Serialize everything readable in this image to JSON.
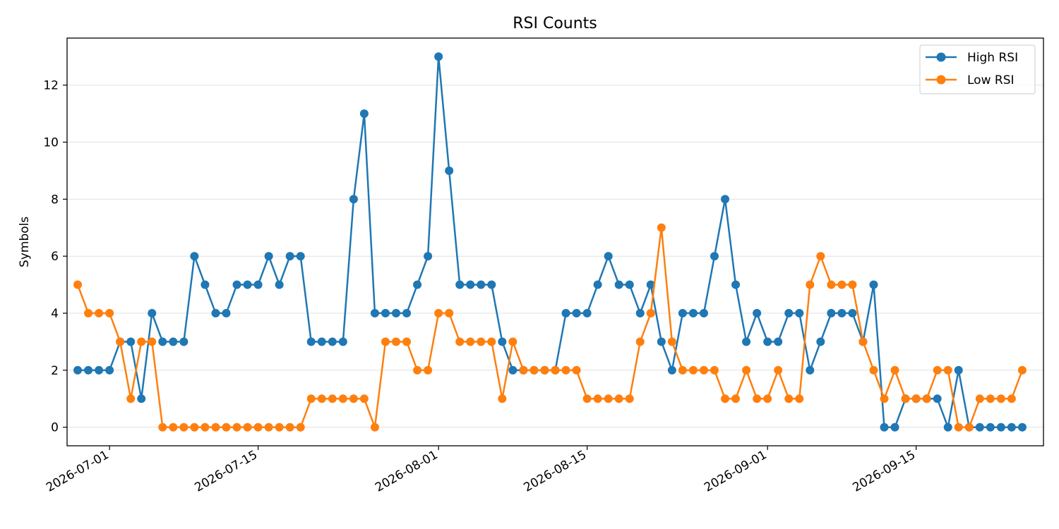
{
  "chart_data": {
    "type": "line",
    "title": "RSI Counts",
    "xlabel": "",
    "ylabel": "Symbols",
    "x_start": "2026-06-27",
    "x_end": "2026-09-27",
    "x": [
      "2026-06-28",
      "2026-06-29",
      "2026-06-30",
      "2026-07-01",
      "2026-07-02",
      "2026-07-03",
      "2026-07-04",
      "2026-07-05",
      "2026-07-06",
      "2026-07-07",
      "2026-07-08",
      "2026-07-09",
      "2026-07-10",
      "2026-07-11",
      "2026-07-12",
      "2026-07-13",
      "2026-07-14",
      "2026-07-15",
      "2026-07-16",
      "2026-07-17",
      "2026-07-18",
      "2026-07-19",
      "2026-07-20",
      "2026-07-21",
      "2026-07-22",
      "2026-07-23",
      "2026-07-24",
      "2026-07-25",
      "2026-07-26",
      "2026-07-27",
      "2026-07-28",
      "2026-07-29",
      "2026-07-30",
      "2026-07-31",
      "2026-08-01",
      "2026-08-02",
      "2026-08-03",
      "2026-08-04",
      "2026-08-05",
      "2026-08-06",
      "2026-08-07",
      "2026-08-08",
      "2026-08-09",
      "2026-08-10",
      "2026-08-11",
      "2026-08-12",
      "2026-08-13",
      "2026-08-14",
      "2026-08-15",
      "2026-08-16",
      "2026-08-17",
      "2026-08-18",
      "2026-08-19",
      "2026-08-20",
      "2026-08-21",
      "2026-08-22",
      "2026-08-23",
      "2026-08-24",
      "2026-08-25",
      "2026-08-26",
      "2026-08-27",
      "2026-08-28",
      "2026-08-29",
      "2026-08-30",
      "2026-08-31",
      "2026-09-01",
      "2026-09-02",
      "2026-09-03",
      "2026-09-04",
      "2026-09-05",
      "2026-09-06",
      "2026-09-07",
      "2026-09-08",
      "2026-09-09",
      "2026-09-10",
      "2026-09-11",
      "2026-09-12",
      "2026-09-13",
      "2026-09-14",
      "2026-09-15",
      "2026-09-16",
      "2026-09-17",
      "2026-09-18",
      "2026-09-19",
      "2026-09-20",
      "2026-09-21",
      "2026-09-22",
      "2026-09-23",
      "2026-09-24",
      "2026-09-25"
    ],
    "series": [
      {
        "name": "High RSI",
        "color": "#1f77b4",
        "values": [
          2,
          2,
          2,
          2,
          3,
          3,
          1,
          4,
          3,
          3,
          3,
          6,
          5,
          4,
          4,
          5,
          5,
          5,
          6,
          5,
          6,
          6,
          3,
          3,
          3,
          3,
          8,
          11,
          4,
          4,
          4,
          4,
          5,
          6,
          13,
          9,
          5,
          5,
          5,
          5,
          3,
          2,
          2,
          2,
          2,
          2,
          4,
          4,
          4,
          5,
          6,
          5,
          5,
          4,
          5,
          3,
          2,
          4,
          4,
          4,
          6,
          8,
          5,
          3,
          4,
          3,
          3,
          4,
          4,
          2,
          3,
          4,
          4,
          4,
          3,
          5,
          0,
          0,
          1,
          1,
          1,
          1,
          0,
          2,
          0,
          0,
          0,
          0,
          0,
          0
        ]
      },
      {
        "name": "Low RSI",
        "color": "#ff7f0e",
        "values": [
          5,
          4,
          4,
          4,
          3,
          1,
          3,
          3,
          0,
          0,
          0,
          0,
          0,
          0,
          0,
          0,
          0,
          0,
          0,
          0,
          0,
          0,
          1,
          1,
          1,
          1,
          1,
          1,
          0,
          3,
          3,
          3,
          2,
          2,
          4,
          4,
          3,
          3,
          3,
          3,
          1,
          3,
          2,
          2,
          2,
          2,
          2,
          2,
          1,
          1,
          1,
          1,
          1,
          3,
          4,
          7,
          3,
          2,
          2,
          2,
          2,
          1,
          1,
          2,
          1,
          1,
          2,
          1,
          1,
          5,
          6,
          5,
          5,
          5,
          3,
          2,
          1,
          2,
          1,
          1,
          1,
          2,
          2,
          0,
          0,
          1,
          1,
          1,
          1,
          2
        ]
      }
    ],
    "ylim": [
      -0.65,
      13.65
    ],
    "y_ticks": [
      0,
      2,
      4,
      6,
      8,
      10,
      12
    ],
    "x_ticks": [
      "2026-07-01",
      "2026-07-15",
      "2026-08-01",
      "2026-08-15",
      "2026-09-01",
      "2026-09-15"
    ],
    "grid": "y",
    "legend_position": "top-right"
  }
}
